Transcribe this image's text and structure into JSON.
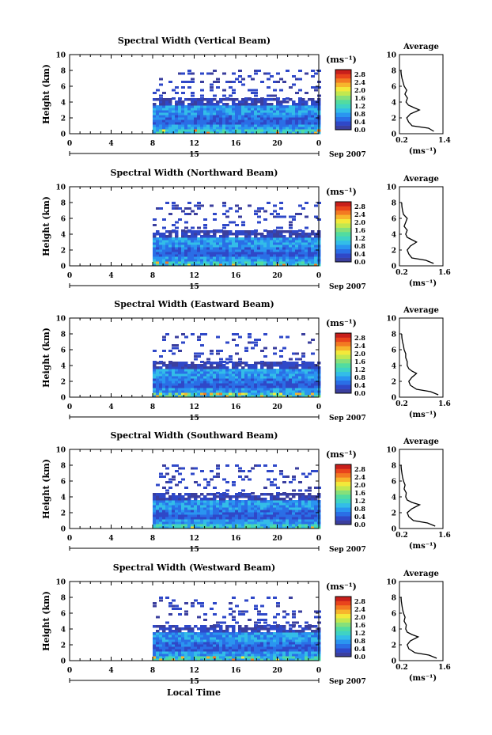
{
  "figure": {
    "xlabel": "Local Time",
    "month_label": "Sep 2007",
    "day_label": "15",
    "avg_title": "Average",
    "unit_label": "(ms⁻¹)",
    "ylabel": "Height (km)"
  },
  "colors": {
    "colorscale": [
      "#3b3f9e",
      "#2f48c8",
      "#2a6ee6",
      "#2a95f0",
      "#33bde8",
      "#3fd3c4",
      "#52dca0",
      "#86e07a",
      "#c2e84f",
      "#f3e93a",
      "#f7b52c",
      "#f37a22",
      "#e9441c",
      "#c81f1b"
    ]
  },
  "chart_data": [
    {
      "type": "heatmap",
      "title": "Spectral Width (Vertical Beam)",
      "x_ticks": [
        "0",
        "4",
        "8",
        "12",
        "16",
        "20",
        "0"
      ],
      "y_ticks": [
        "0",
        "2",
        "4",
        "6",
        "8",
        "10"
      ],
      "colorbar_ticks": [
        "0.0",
        "0.4",
        "0.8",
        "1.2",
        "1.6",
        "2.0",
        "2.4",
        "2.8"
      ],
      "data_range_hours": [
        8,
        24
      ],
      "ylim": [
        0,
        10
      ],
      "average_profile": {
        "title": "Average",
        "x_ticks": [
          "0.2",
          "1.4"
        ],
        "xlim": [
          0.2,
          1.4
        ],
        "xlabel": "(ms⁻¹)",
        "heights": [
          0.3,
          0.7,
          1.0,
          1.5,
          2.0,
          2.5,
          3.0,
          3.3,
          3.6,
          4.0,
          4.5,
          5.0,
          5.5,
          6.0,
          6.5,
          7.0,
          7.5,
          8.0
        ],
        "values": [
          1.15,
          1.0,
          0.55,
          0.45,
          0.4,
          0.5,
          0.75,
          0.6,
          0.45,
          0.38,
          0.42,
          0.35,
          0.4,
          0.33,
          0.3,
          0.27,
          0.25,
          0.24
        ]
      }
    },
    {
      "type": "heatmap",
      "title": "Spectral Width (Northward Beam)",
      "x_ticks": [
        "0",
        "4",
        "8",
        "12",
        "16",
        "20",
        "0"
      ],
      "y_ticks": [
        "0",
        "2",
        "4",
        "6",
        "8",
        "10"
      ],
      "colorbar_ticks": [
        "0.0",
        "0.4",
        "0.8",
        "1.2",
        "1.6",
        "2.0",
        "2.4",
        "2.8"
      ],
      "data_range_hours": [
        8,
        24
      ],
      "ylim": [
        0,
        10
      ],
      "average_profile": {
        "title": "Average",
        "x_ticks": [
          "0.2",
          "1.6"
        ],
        "xlim": [
          0.2,
          1.6
        ],
        "xlabel": "(ms⁻¹)",
        "heights": [
          0.3,
          0.7,
          1.0,
          1.5,
          2.0,
          2.5,
          3.0,
          3.3,
          3.6,
          4.0,
          4.5,
          5.0,
          5.5,
          6.0,
          6.5,
          7.0,
          7.5,
          8.0
        ],
        "values": [
          1.3,
          1.05,
          0.6,
          0.5,
          0.45,
          0.55,
          0.75,
          0.6,
          0.45,
          0.4,
          0.45,
          0.35,
          0.4,
          0.45,
          0.33,
          0.3,
          0.28,
          0.27
        ]
      }
    },
    {
      "type": "heatmap",
      "title": "Spectral Width (Eastward Beam)",
      "x_ticks": [
        "0",
        "4",
        "8",
        "12",
        "16",
        "20",
        "0"
      ],
      "y_ticks": [
        "0",
        "2",
        "4",
        "6",
        "8",
        "10"
      ],
      "colorbar_ticks": [
        "0.0",
        "0.4",
        "0.8",
        "1.2",
        "1.6",
        "2.0",
        "2.4",
        "2.8"
      ],
      "data_range_hours": [
        8,
        24
      ],
      "ylim": [
        0,
        10
      ],
      "average_profile": {
        "title": "Average",
        "x_ticks": [
          "0.2",
          "1.6"
        ],
        "xlim": [
          0.2,
          1.6
        ],
        "xlabel": "(ms⁻¹)",
        "heights": [
          0.3,
          0.7,
          1.0,
          1.5,
          2.0,
          2.5,
          3.0,
          3.3,
          3.6,
          4.0,
          4.5,
          5.0,
          5.5,
          6.0,
          6.5,
          7.0,
          7.5,
          8.0
        ],
        "values": [
          1.45,
          1.2,
          0.75,
          0.55,
          0.5,
          0.6,
          0.75,
          0.6,
          0.5,
          0.45,
          0.45,
          0.4,
          0.4,
          0.35,
          0.33,
          0.3,
          0.28,
          0.27
        ]
      }
    },
    {
      "type": "heatmap",
      "title": "Spectral Width (Southward Beam)",
      "x_ticks": [
        "0",
        "4",
        "8",
        "12",
        "16",
        "20",
        "0"
      ],
      "y_ticks": [
        "0",
        "2",
        "4",
        "6",
        "8",
        "10"
      ],
      "colorbar_ticks": [
        "0.0",
        "0.4",
        "0.8",
        "1.2",
        "1.6",
        "2.0",
        "2.4",
        "2.8"
      ],
      "data_range_hours": [
        8,
        24
      ],
      "ylim": [
        0,
        10
      ],
      "average_profile": {
        "title": "Average",
        "x_ticks": [
          "0.2",
          "1.6"
        ],
        "xlim": [
          0.2,
          1.6
        ],
        "xlabel": "(ms⁻¹)",
        "heights": [
          0.3,
          0.7,
          1.0,
          1.5,
          2.0,
          2.5,
          3.0,
          3.3,
          3.6,
          4.0,
          4.5,
          5.0,
          5.5,
          6.0,
          6.5,
          7.0,
          7.5,
          8.0
        ],
        "values": [
          1.35,
          1.1,
          0.65,
          0.5,
          0.45,
          0.6,
          0.85,
          0.6,
          0.45,
          0.4,
          0.42,
          0.35,
          0.38,
          0.33,
          0.3,
          0.28,
          0.26,
          0.25
        ]
      }
    },
    {
      "type": "heatmap",
      "title": "Spectral Width (Westward Beam)",
      "x_ticks": [
        "0",
        "4",
        "8",
        "12",
        "16",
        "20",
        "0"
      ],
      "y_ticks": [
        "0",
        "2",
        "4",
        "6",
        "8",
        "10"
      ],
      "colorbar_ticks": [
        "0.0",
        "0.4",
        "0.8",
        "1.2",
        "1.6",
        "2.0",
        "2.4",
        "2.8"
      ],
      "data_range_hours": [
        8,
        24
      ],
      "ylim": [
        0,
        10
      ],
      "average_profile": {
        "title": "Average",
        "x_ticks": [
          "0.2",
          "1.6"
        ],
        "xlim": [
          0.2,
          1.6
        ],
        "xlabel": "(ms⁻¹)",
        "heights": [
          0.3,
          0.7,
          1.0,
          1.5,
          2.0,
          2.5,
          3.0,
          3.3,
          3.6,
          4.0,
          4.5,
          5.0,
          5.5,
          6.0,
          6.5,
          7.0,
          7.5,
          8.0
        ],
        "values": [
          1.4,
          1.15,
          0.7,
          0.5,
          0.45,
          0.55,
          0.8,
          0.6,
          0.45,
          0.4,
          0.42,
          0.35,
          0.38,
          0.33,
          0.3,
          0.28,
          0.26,
          0.25
        ]
      }
    }
  ]
}
